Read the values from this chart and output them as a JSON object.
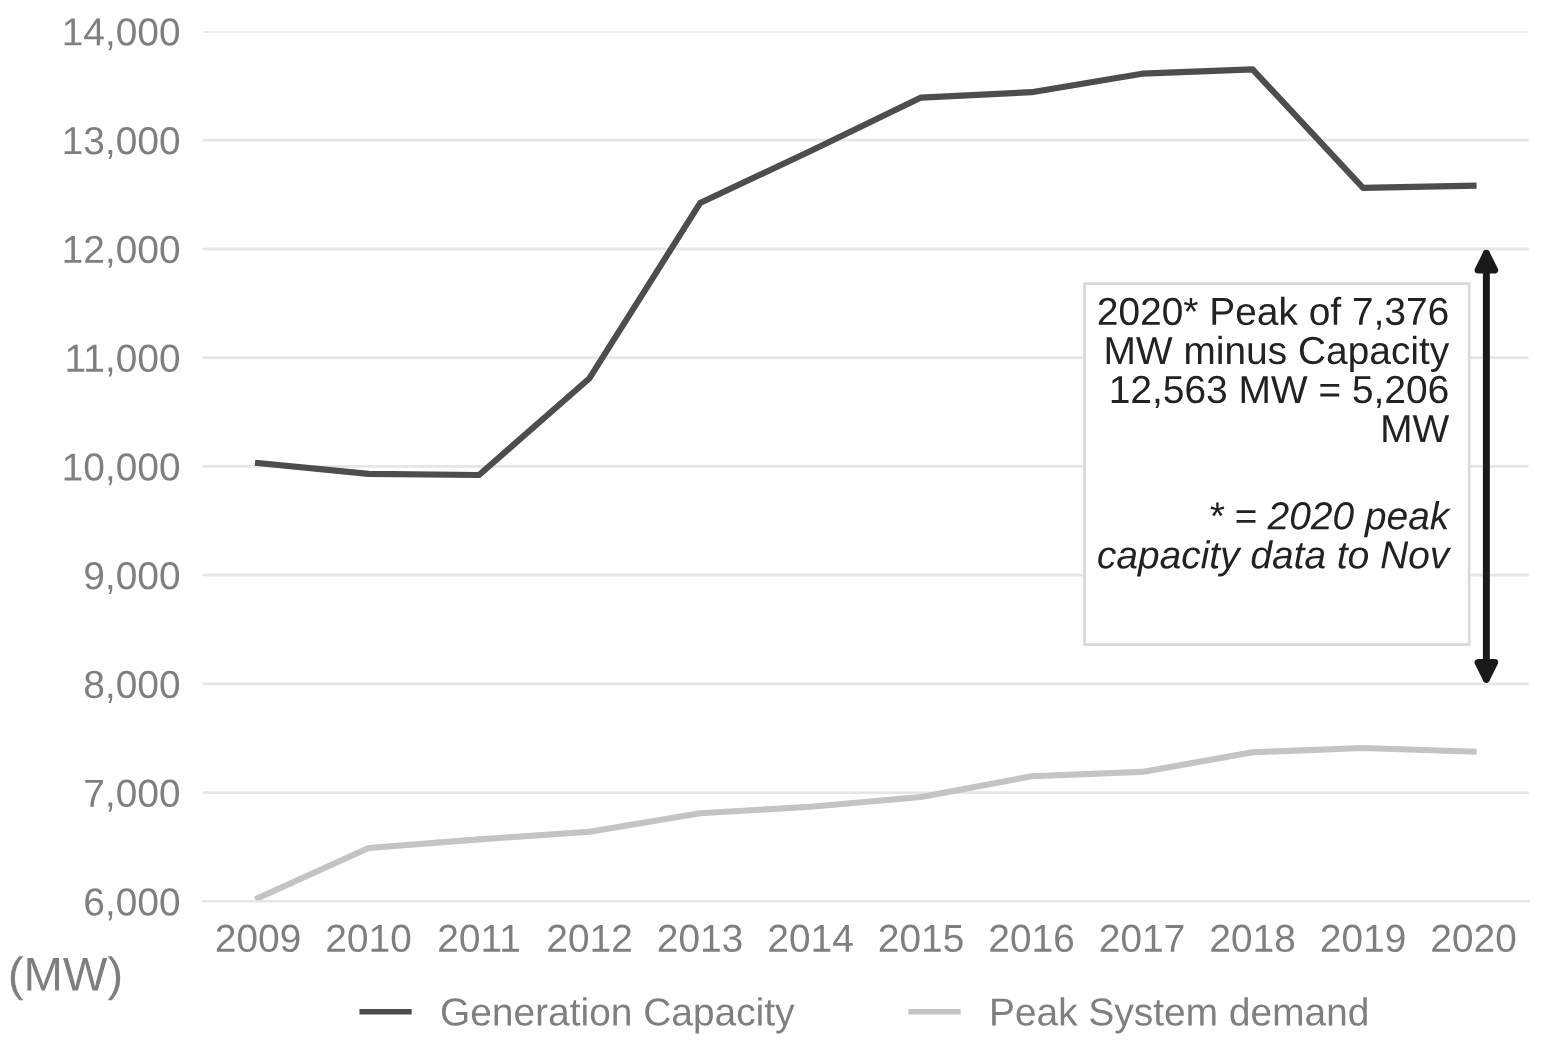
{
  "chart_data": {
    "type": "line",
    "ylabel": "(MW)",
    "categories": [
      "2009",
      "2010",
      "2011",
      "2012",
      "2013",
      "2014",
      "2015",
      "2016",
      "2017",
      "2018",
      "2019",
      "2020"
    ],
    "series": [
      {
        "name": "Generation Capacity",
        "color": "#4d4d4d",
        "values": [
          10030,
          9930,
          9920,
          10810,
          12420,
          12900,
          13390,
          13440,
          13610,
          13650,
          12560,
          12580
        ]
      },
      {
        "name": "Peak System demand",
        "color": "#c4c4c4",
        "values": [
          6030,
          6490,
          6570,
          6640,
          6810,
          6870,
          6960,
          7150,
          7190,
          7370,
          7410,
          7376
        ]
      }
    ],
    "ylim": [
      6000,
      14000
    ],
    "yticks": [
      {
        "value": 6000,
        "label": "6,000"
      },
      {
        "value": 7000,
        "label": "7,000"
      },
      {
        "value": 8000,
        "label": "8,000"
      },
      {
        "value": 9000,
        "label": "9,000"
      },
      {
        "value": 10000,
        "label": "10,000"
      },
      {
        "value": 11000,
        "label": "11,000"
      },
      {
        "value": 12000,
        "label": "12,000"
      },
      {
        "value": 13000,
        "label": "13,000"
      },
      {
        "value": 14000,
        "label": "14,000"
      }
    ],
    "grid": "y",
    "legend": "bottom",
    "marker": "none",
    "line_style": "solid",
    "annotations": [
      "2020* Peak of 7,376\nMW minus Capacity\n12,563 MW = 5,206\nMW",
      "* = 2020 peak\ncapacity data to Nov"
    ]
  }
}
